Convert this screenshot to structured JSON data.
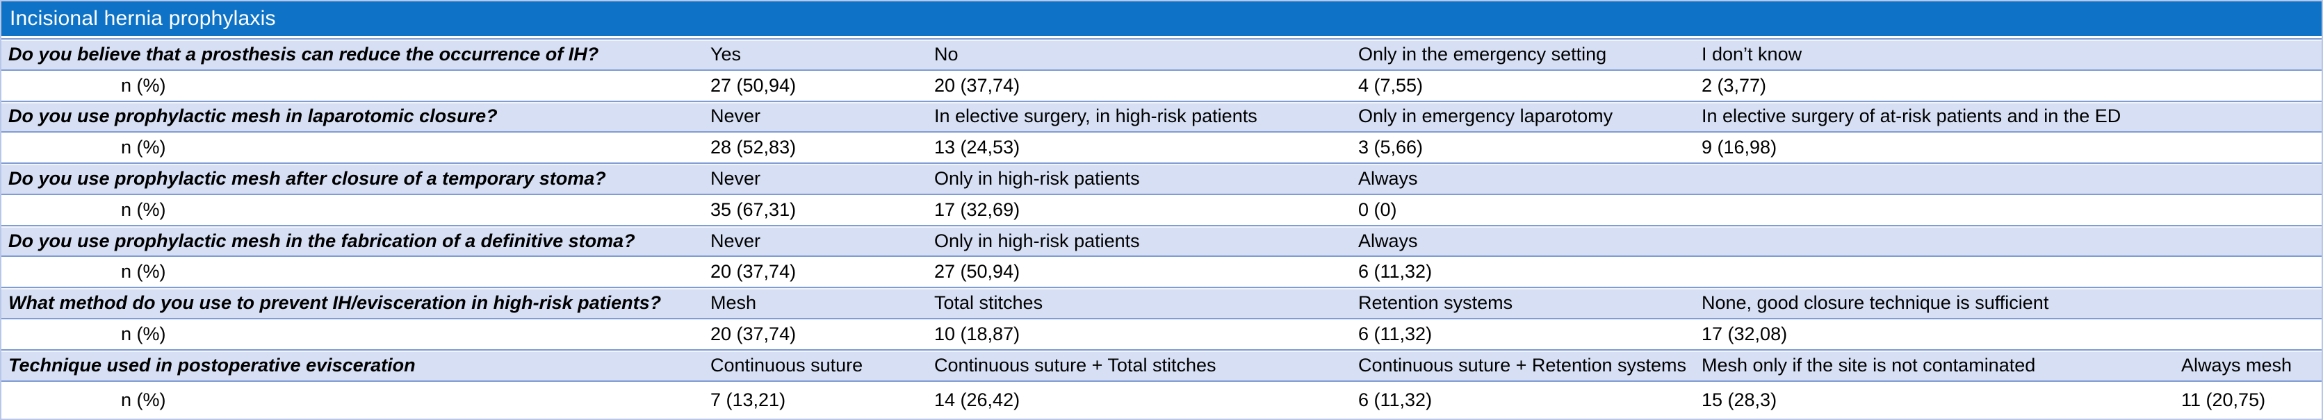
{
  "header": {
    "title": "Incisional hernia prophylaxis",
    "bg_color": "#0e73c6",
    "text_color": "#ffffff"
  },
  "stat_row_label": "n (%)",
  "colors": {
    "option_row_bg": "#d6dff3",
    "grid_line": "#7f9cd4",
    "outer_border": "#b8c6ea"
  },
  "table": {
    "questions": [
      {
        "question": "Do you believe that a prosthesis can reduce the occurrence of IH?",
        "options": [
          {
            "label": "Yes",
            "value": "27 (50,94)"
          },
          {
            "label": "No",
            "value": "20 (37,74)"
          },
          {
            "label": "Only in the emergency setting",
            "value": "4 (7,55)"
          },
          {
            "label": "I don’t know",
            "value": "2 (3,77)"
          }
        ]
      },
      {
        "question": "Do you use prophylactic mesh in laparotomic closure?",
        "options": [
          {
            "label": "Never",
            "value": "28 (52,83)"
          },
          {
            "label": "In elective surgery, in high-risk patients",
            "value": "13 (24,53)"
          },
          {
            "label": "Only in emergency laparotomy",
            "value": "3 (5,66)"
          },
          {
            "label": "In elective surgery of at-risk patients and in the ED",
            "value": "9 (16,98)"
          }
        ]
      },
      {
        "question": "Do you use prophylactic mesh after closure of a temporary stoma?",
        "options": [
          {
            "label": "Never",
            "value": "35 (67,31)"
          },
          {
            "label": "Only in high-risk patients",
            "value": "17 (32,69)"
          },
          {
            "label": "Always",
            "value": "0 (0)"
          }
        ]
      },
      {
        "question": "Do you use prophylactic mesh in the fabrication of a definitive stoma?",
        "options": [
          {
            "label": "Never",
            "value": "20 (37,74)"
          },
          {
            "label": "Only in high-risk patients",
            "value": "27 (50,94)"
          },
          {
            "label": "Always",
            "value": "6 (11,32)"
          }
        ]
      },
      {
        "question": "What method do you use to prevent IH/evisceration in high-risk patients?",
        "options": [
          {
            "label": "Mesh",
            "value": "20 (37,74)"
          },
          {
            "label": "Total stitches",
            "value": "10 (18,87)"
          },
          {
            "label": "Retention systems",
            "value": "6 (11,32)"
          },
          {
            "label": "None, good closure technique is sufficient",
            "value": "17 (32,08)"
          }
        ]
      },
      {
        "question": "Technique used in postoperative evisceration",
        "options": [
          {
            "label": "Continuous suture",
            "value": "7 (13,21)"
          },
          {
            "label": "Continuous suture + Total stitches",
            "value": "14 (26,42)"
          },
          {
            "label": "Continuous suture + Retention systems",
            "value": "6 (11,32)"
          },
          {
            "label": "Mesh only if the site is not contaminated",
            "value": "15 (28,3)"
          },
          {
            "label": "Always mesh",
            "value": "11 (20,75)"
          }
        ]
      }
    ]
  }
}
